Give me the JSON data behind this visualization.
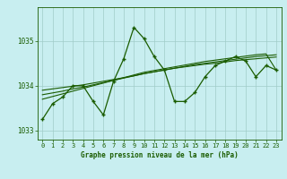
{
  "title": "Graphe pression niveau de la mer (hPa)",
  "bg_color": "#c8eef0",
  "grid_color": "#a0ccc8",
  "line_color": "#1a5c00",
  "xlim": [
    -0.5,
    23.5
  ],
  "ylim": [
    1032.8,
    1035.75
  ],
  "yticks": [
    1033,
    1034,
    1035
  ],
  "xticks": [
    0,
    1,
    2,
    3,
    4,
    5,
    6,
    7,
    8,
    9,
    10,
    11,
    12,
    13,
    14,
    15,
    16,
    17,
    18,
    19,
    20,
    21,
    22,
    23
  ],
  "series1": [
    1033.25,
    1033.6,
    1033.75,
    1034.0,
    1034.0,
    1033.65,
    1033.35,
    1034.1,
    1034.6,
    1035.3,
    1035.05,
    1034.65,
    1034.35,
    1033.65,
    1033.65,
    1033.85,
    1034.2,
    1034.45,
    1034.55,
    1034.65,
    1034.55,
    1034.2,
    1034.45,
    1034.35
  ],
  "series2": [
    1033.9,
    1033.93,
    1033.96,
    1033.99,
    1034.02,
    1034.06,
    1034.1,
    1034.14,
    1034.18,
    1034.22,
    1034.27,
    1034.31,
    1034.35,
    1034.39,
    1034.42,
    1034.45,
    1034.48,
    1034.5,
    1034.53,
    1034.56,
    1034.58,
    1034.6,
    1034.62,
    1034.64
  ],
  "series3": [
    1033.8,
    1033.84,
    1033.88,
    1033.93,
    1033.97,
    1034.02,
    1034.07,
    1034.12,
    1034.17,
    1034.22,
    1034.27,
    1034.31,
    1034.35,
    1034.39,
    1034.43,
    1034.47,
    1034.5,
    1034.53,
    1034.56,
    1034.59,
    1034.62,
    1034.65,
    1034.67,
    1034.69
  ],
  "series4": [
    1033.7,
    1033.76,
    1033.82,
    1033.88,
    1033.94,
    1034.0,
    1034.06,
    1034.12,
    1034.18,
    1034.24,
    1034.3,
    1034.34,
    1034.38,
    1034.42,
    1034.46,
    1034.5,
    1034.54,
    1034.57,
    1034.6,
    1034.63,
    1034.66,
    1034.69,
    1034.71,
    1034.35
  ]
}
